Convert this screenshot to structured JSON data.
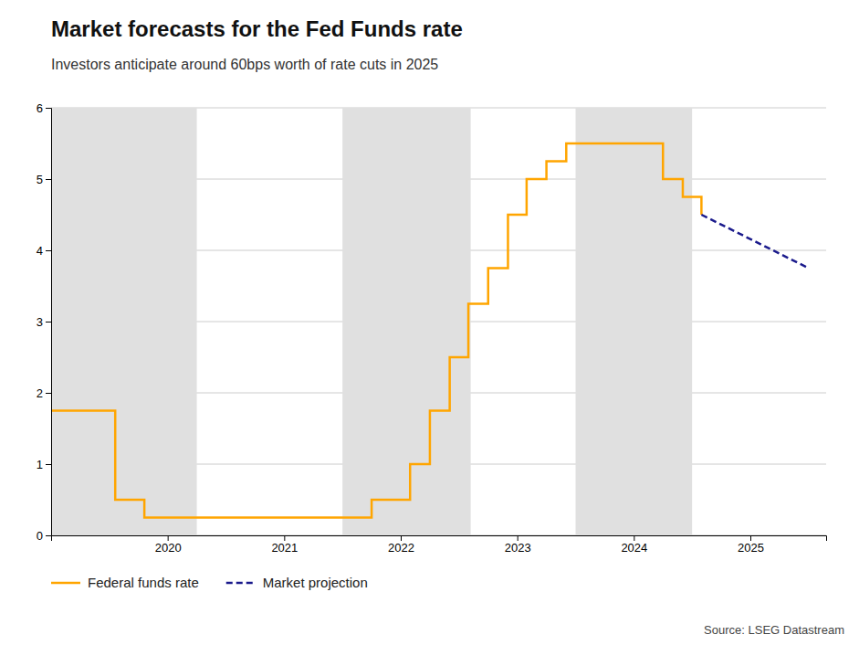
{
  "chart_data": {
    "type": "line",
    "title": "Market forecasts for the Fed Funds rate",
    "subtitle": "Investors anticipate around 60bps worth of rate cuts in 2025",
    "source": "Source: LSEG Datastream",
    "xlim": [
      2019.0,
      2025.65
    ],
    "xticks": [
      2020,
      2021,
      2022,
      2023,
      2024,
      2025
    ],
    "ylim": [
      0,
      6
    ],
    "yticks": [
      0,
      1,
      2,
      3,
      4,
      5,
      6
    ],
    "grid": "y",
    "legend": "bottom",
    "shaded_regions": [
      {
        "x": [
          2019.0,
          2020.25
        ],
        "color": "#e0e0e0"
      },
      {
        "x": [
          2021.5,
          2022.6
        ],
        "color": "#e0e0e0"
      },
      {
        "x": [
          2023.5,
          2024.5
        ],
        "color": "#e0e0e0"
      }
    ],
    "series": [
      {
        "name": "Federal funds rate",
        "color": "#FFA500",
        "line_style": "solid",
        "x": [
          2019.0,
          2019.55,
          2019.55,
          2019.8,
          2019.8,
          2020.0,
          2020.0,
          2021.75,
          2021.75,
          2022.08,
          2022.08,
          2022.25,
          2022.25,
          2022.42,
          2022.42,
          2022.58,
          2022.58,
          2022.75,
          2022.75,
          2022.92,
          2022.92,
          2023.08,
          2023.08,
          2023.25,
          2023.25,
          2023.42,
          2023.42,
          2023.58,
          2023.58,
          2024.25,
          2024.25,
          2024.42,
          2024.42,
          2024.58,
          2024.58
        ],
        "values": [
          1.75,
          1.75,
          0.5,
          0.5,
          0.25,
          0.25,
          0.25,
          0.25,
          0.5,
          0.5,
          1.0,
          1.0,
          1.75,
          1.75,
          2.5,
          2.5,
          3.25,
          3.25,
          3.75,
          3.75,
          4.5,
          4.5,
          5.0,
          5.0,
          5.25,
          5.25,
          5.5,
          5.5,
          5.5,
          5.5,
          5.0,
          5.0,
          4.75,
          4.75,
          4.5
        ]
      },
      {
        "name": "Market projection",
        "color": "#1a1a8c",
        "line_style": "dashed",
        "x": [
          2024.58,
          2025.5
        ],
        "values": [
          4.5,
          3.75
        ]
      }
    ]
  }
}
